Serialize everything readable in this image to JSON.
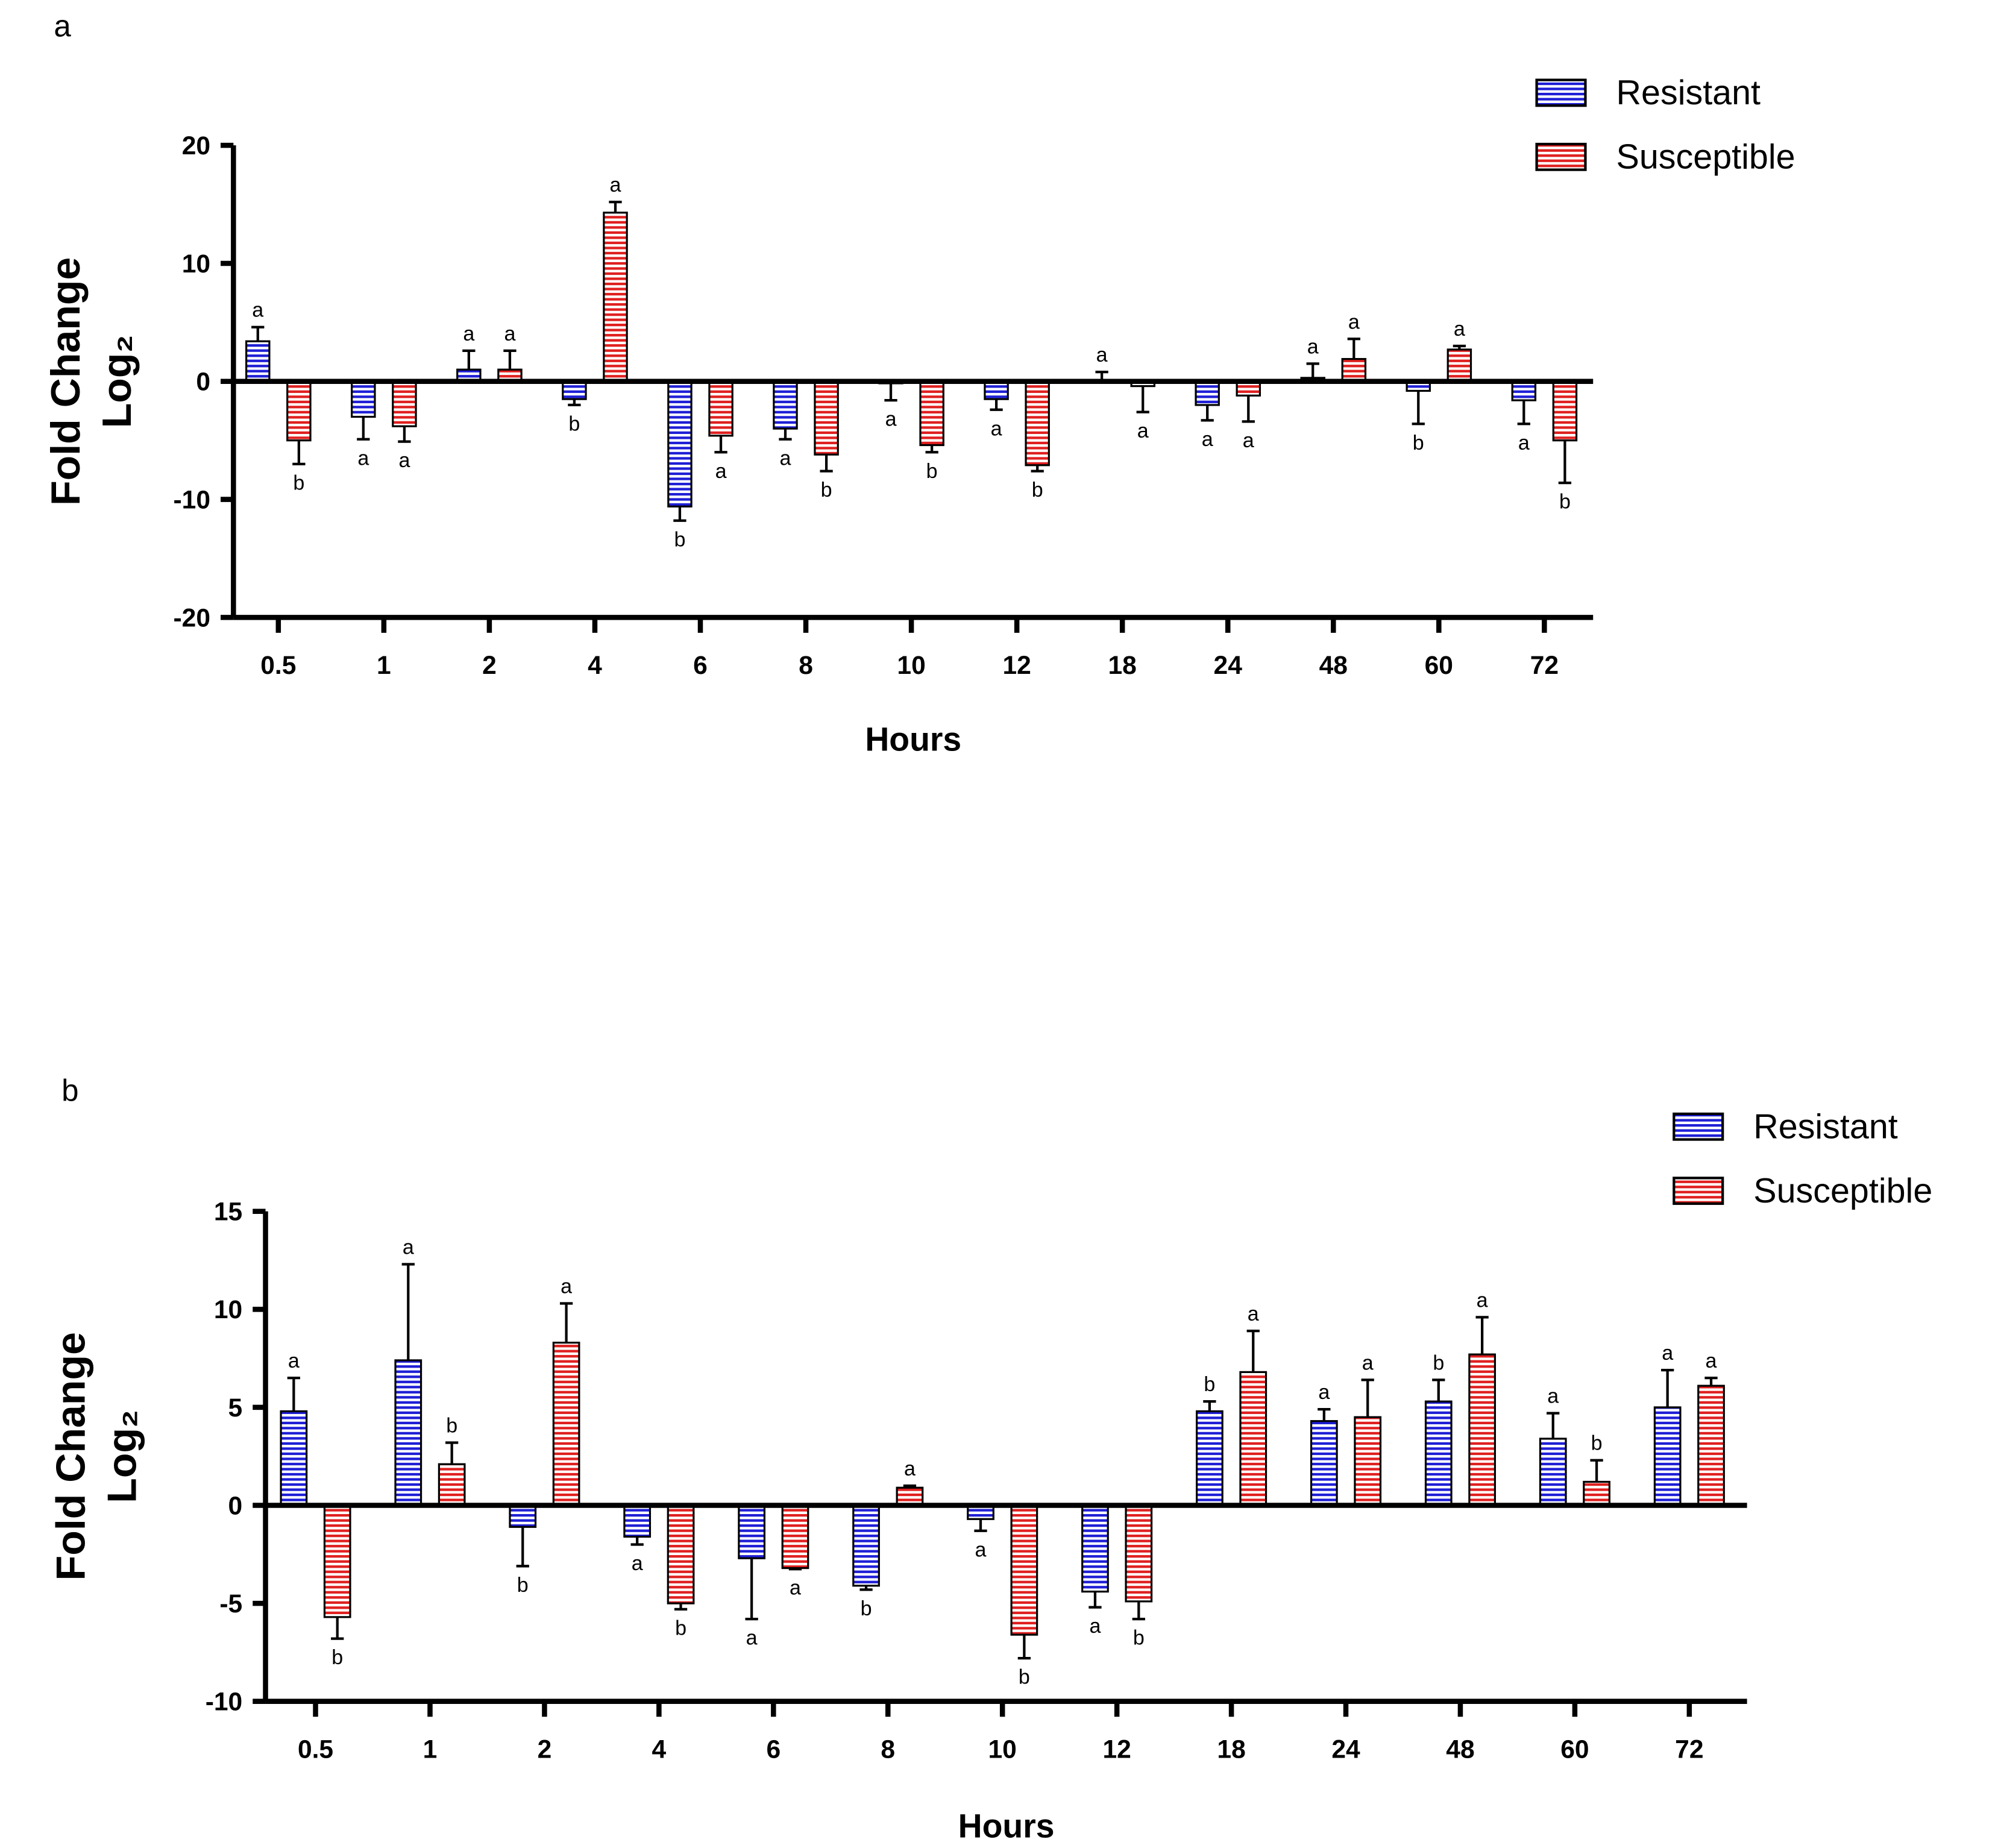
{
  "colors": {
    "resistant": "#1f1fd6",
    "susceptible": "#e02020"
  },
  "chart_data": [
    {
      "type": "bar",
      "panel": "a",
      "categories": [
        "0.5",
        "1",
        "2",
        "4",
        "6",
        "8",
        "10",
        "12",
        "18",
        "24",
        "48",
        "60",
        "72"
      ],
      "xlabel": "Hours",
      "ylabel_line1": "Fold Change",
      "ylabel_line2": "Log₂",
      "ylim": [
        -20,
        20
      ],
      "yticks": [
        20,
        10,
        0,
        -10,
        -20
      ],
      "legend": [
        "Resistant",
        "Susceptible"
      ],
      "legend_position": "top-right",
      "series": [
        {
          "name": "Resistant",
          "values": [
            3.4,
            -3.0,
            1.0,
            -1.5,
            -10.6,
            -4.0,
            -0.1,
            -1.5,
            0.1,
            -2.0,
            0.3,
            -0.8,
            -1.6
          ],
          "errors": [
            1.2,
            1.9,
            1.6,
            0.5,
            1.2,
            0.9,
            1.5,
            0.9,
            0.7,
            1.3,
            1.2,
            2.8,
            2.0
          ],
          "letters": [
            "a",
            "a",
            "a",
            "b",
            "b",
            "a",
            "a",
            "a",
            "a",
            "a",
            "a",
            "b",
            "a"
          ]
        },
        {
          "name": "Susceptible",
          "values": [
            -5.0,
            -3.8,
            1.0,
            14.3,
            -4.6,
            -6.2,
            -5.4,
            -7.1,
            -0.4,
            -1.2,
            1.9,
            2.7,
            -5.0
          ],
          "errors": [
            2.0,
            1.3,
            1.6,
            0.9,
            1.4,
            1.4,
            0.6,
            0.5,
            2.2,
            2.2,
            1.7,
            0.3,
            3.6
          ],
          "letters": [
            "b",
            "a",
            "a",
            "a",
            "a",
            "b",
            "b",
            "b",
            "a",
            "a",
            "a",
            "a",
            "b"
          ]
        }
      ]
    },
    {
      "type": "bar",
      "panel": "b",
      "categories": [
        "0.5",
        "1",
        "2",
        "4",
        "6",
        "8",
        "10",
        "12",
        "18",
        "24",
        "48",
        "60",
        "72"
      ],
      "xlabel": "Hours",
      "ylabel_line1": "Fold Change",
      "ylabel_line2": "Log₂",
      "ylim": [
        -10,
        15
      ],
      "yticks": [
        15,
        10,
        5,
        0,
        -5,
        -10
      ],
      "legend": [
        "Resistant",
        "Susceptible"
      ],
      "legend_position": "top-right",
      "series": [
        {
          "name": "Resistant",
          "values": [
            4.8,
            7.4,
            -1.1,
            -1.6,
            -2.7,
            -4.1,
            -0.7,
            -4.4,
            4.8,
            4.3,
            5.3,
            3.4,
            5.0
          ],
          "errors": [
            1.7,
            4.9,
            2.0,
            0.4,
            3.1,
            0.2,
            0.6,
            0.8,
            0.5,
            0.6,
            1.1,
            1.3,
            1.9
          ],
          "letters": [
            "a",
            "a",
            "b",
            "a",
            "a",
            "b",
            "a",
            "a",
            "b",
            "a",
            "b",
            "a",
            "a"
          ]
        },
        {
          "name": "Susceptible",
          "values": [
            -5.7,
            2.1,
            8.3,
            -5.0,
            -3.2,
            0.9,
            -6.6,
            -4.9,
            6.8,
            4.5,
            7.7,
            1.2,
            6.1
          ],
          "errors": [
            1.1,
            1.1,
            2.0,
            0.3,
            0.05,
            0.1,
            1.2,
            0.9,
            2.1,
            1.9,
            1.9,
            1.1,
            0.4
          ],
          "letters": [
            "b",
            "b",
            "a",
            "b",
            "a",
            "a",
            "b",
            "b",
            "a",
            "a",
            "a",
            "b",
            "a"
          ]
        }
      ]
    }
  ]
}
